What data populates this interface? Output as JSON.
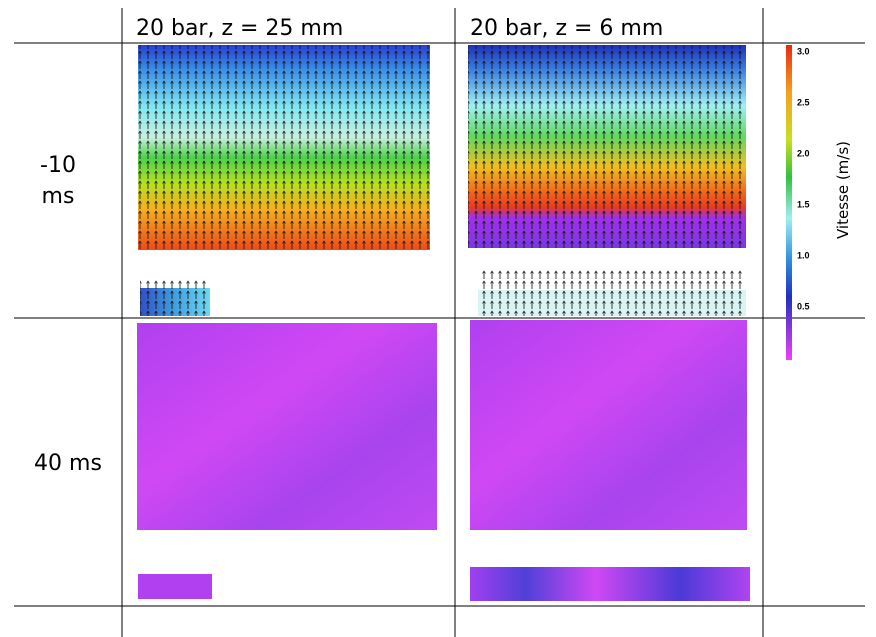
{
  "table": {
    "header": [
      "20 bar, z = 25 mm",
      "20 bar, z = 6 mm"
    ],
    "rows": [
      [
        "-10",
        "ms"
      ],
      [
        "40 ms"
      ]
    ],
    "colorbar": {
      "label": "Vitesse (m/s)",
      "ticks": [
        "3.0",
        "2.5",
        "2.0",
        "1.5",
        "1.0",
        "0.5"
      ]
    }
  }
}
